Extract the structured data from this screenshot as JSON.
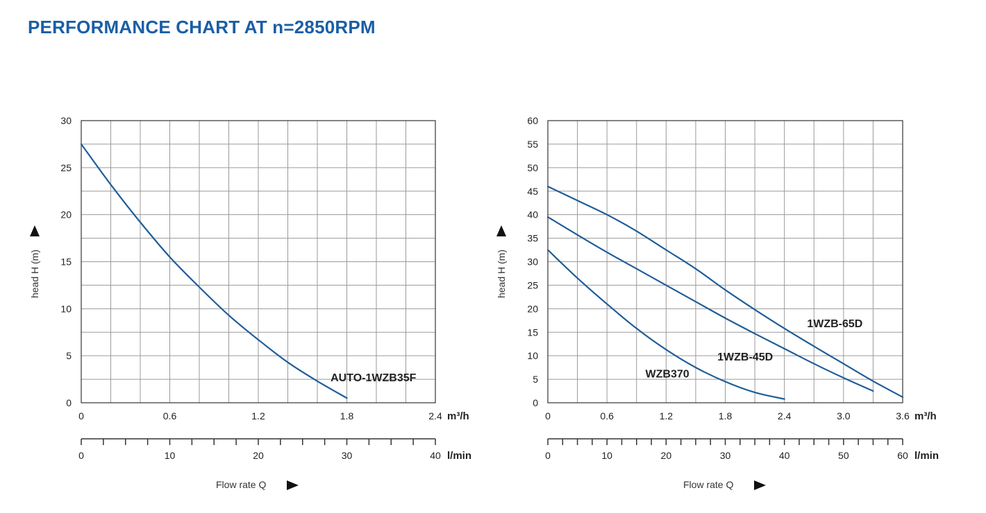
{
  "page_title": "PERFORMANCE CHART AT n=2850RPM",
  "colors": {
    "title": "#1a5ea6",
    "curve": "#1f5d99",
    "grid": "#9a9a9a",
    "axis": "#333333"
  },
  "chart_data": [
    {
      "type": "line",
      "xlabel": "Flow rate Q",
      "ylabel": "head H (m)",
      "x_unit": "m³/h",
      "x2_unit": "l/min",
      "xlim": [
        0,
        2.4
      ],
      "ylim": [
        0,
        30
      ],
      "x_ticks": [
        "0",
        "0.6",
        "1.2",
        "1.8",
        "2.4"
      ],
      "x_tick_values": [
        0,
        0.6,
        1.2,
        1.8,
        2.4
      ],
      "x2_ticks": [
        "0",
        "10",
        "20",
        "30",
        "40"
      ],
      "x2_tick_values": [
        0,
        10,
        20,
        30,
        40
      ],
      "x2_max": 40,
      "x2_minor_step": 2.5,
      "x_grid_step": 0.2,
      "y_ticks": [
        "0",
        "5",
        "10",
        "15",
        "20",
        "25",
        "30"
      ],
      "y_tick_values": [
        0,
        5,
        10,
        15,
        20,
        25,
        30
      ],
      "y_grid_step": 2.5,
      "grid": true,
      "series": [
        {
          "name": "AUTO-1WZB35F",
          "label_at": [
            1.69,
            2.3
          ],
          "x": [
            0,
            0.2,
            0.4,
            0.6,
            0.8,
            1.0,
            1.2,
            1.4,
            1.6,
            1.8
          ],
          "y": [
            27.5,
            23.2,
            19.2,
            15.5,
            12.3,
            9.3,
            6.7,
            4.3,
            2.3,
            0.5
          ]
        }
      ]
    },
    {
      "type": "line",
      "xlabel": "Flow rate Q",
      "ylabel": "head H (m)",
      "x_unit": "m³/h",
      "x2_unit": "l/min",
      "xlim": [
        0,
        3.6
      ],
      "ylim": [
        0,
        60
      ],
      "x_ticks": [
        "0",
        "0.6",
        "1.2",
        "1.8",
        "2.4",
        "3.0",
        "3.6"
      ],
      "x_tick_values": [
        0,
        0.6,
        1.2,
        1.8,
        2.4,
        3.0,
        3.6
      ],
      "x2_ticks": [
        "0",
        "10",
        "20",
        "30",
        "40",
        "50",
        "60"
      ],
      "x2_tick_values": [
        0,
        10,
        20,
        30,
        40,
        50,
        60
      ],
      "x2_max": 60,
      "x2_minor_step": 2.5,
      "x_grid_step": 0.3,
      "y_ticks": [
        "0",
        "5",
        "10",
        "15",
        "20",
        "25",
        "30",
        "35",
        "40",
        "45",
        "50",
        "55",
        "60"
      ],
      "y_tick_values": [
        0,
        5,
        10,
        15,
        20,
        25,
        30,
        35,
        40,
        45,
        50,
        55,
        60
      ],
      "y_grid_step": 5,
      "grid": true,
      "series": [
        {
          "name": "1WZB-65D",
          "label_at": [
            2.63,
            16.1
          ],
          "x": [
            0,
            0.3,
            0.6,
            0.9,
            1.2,
            1.5,
            1.8,
            2.1,
            2.4,
            2.7,
            3.0,
            3.3,
            3.6
          ],
          "y": [
            46.0,
            43.0,
            40.0,
            36.5,
            32.5,
            28.5,
            24.0,
            19.8,
            15.8,
            12.0,
            8.3,
            4.6,
            1.2
          ]
        },
        {
          "name": "1WZB-45D",
          "label_at": [
            1.72,
            9.0
          ],
          "x": [
            0,
            0.3,
            0.6,
            0.9,
            1.2,
            1.5,
            1.8,
            2.1,
            2.4,
            2.7,
            3.0,
            3.3
          ],
          "y": [
            39.5,
            35.7,
            32.0,
            28.5,
            25.0,
            21.5,
            18.0,
            14.7,
            11.5,
            8.3,
            5.3,
            2.5
          ]
        },
        {
          "name": "WZB370",
          "label_at": [
            0.99,
            5.4
          ],
          "x": [
            0,
            0.3,
            0.6,
            0.9,
            1.2,
            1.5,
            1.8,
            2.1,
            2.4
          ],
          "y": [
            32.5,
            26.5,
            21.0,
            15.8,
            11.3,
            7.5,
            4.5,
            2.2,
            0.8
          ]
        }
      ]
    }
  ]
}
